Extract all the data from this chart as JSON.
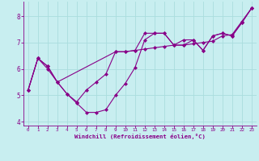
{
  "line1_x": [
    0,
    1,
    2,
    3,
    4,
    5,
    6,
    7,
    8,
    9,
    10,
    11,
    12,
    13,
    14,
    15,
    16,
    17,
    18,
    19,
    20,
    21,
    22,
    23
  ],
  "line1_y": [
    5.2,
    6.4,
    6.0,
    5.5,
    5.05,
    4.7,
    4.35,
    4.35,
    4.45,
    5.0,
    5.45,
    6.05,
    7.1,
    7.35,
    7.35,
    6.9,
    6.9,
    7.1,
    6.7,
    7.25,
    7.35,
    7.25,
    7.75,
    8.3
  ],
  "line2_x": [
    0,
    1,
    2,
    3,
    9,
    10,
    11,
    12,
    13,
    14,
    15,
    16,
    17,
    18,
    19,
    20,
    21,
    22,
    23
  ],
  "line2_y": [
    5.2,
    6.4,
    6.1,
    5.5,
    6.65,
    6.65,
    6.7,
    6.75,
    6.8,
    6.85,
    6.9,
    6.9,
    6.95,
    7.0,
    7.05,
    7.25,
    7.3,
    7.8,
    8.3
  ],
  "line3_x": [
    0,
    1,
    2,
    3,
    4,
    5,
    6,
    7,
    8,
    9,
    10,
    11,
    12,
    13,
    14,
    15,
    16,
    17,
    18,
    19,
    20,
    21,
    22,
    23
  ],
  "line3_y": [
    5.2,
    6.4,
    6.1,
    5.5,
    5.05,
    4.75,
    5.2,
    5.5,
    5.8,
    6.65,
    6.65,
    6.7,
    7.35,
    7.35,
    7.35,
    6.9,
    7.1,
    7.1,
    6.7,
    7.25,
    7.35,
    7.25,
    7.75,
    8.3
  ],
  "color": "#880088",
  "bg_color": "#c8eef0",
  "grid_color": "#aadddd",
  "xlabel": "Windchill (Refroidissement éolien,°C)",
  "xlim": [
    -0.5,
    23.5
  ],
  "ylim": [
    3.85,
    8.55
  ],
  "yticks": [
    4,
    5,
    6,
    7,
    8
  ],
  "xticks": [
    0,
    1,
    2,
    3,
    4,
    5,
    6,
    7,
    8,
    9,
    10,
    11,
    12,
    13,
    14,
    15,
    16,
    17,
    18,
    19,
    20,
    21,
    22,
    23
  ],
  "marker": "D",
  "markersize": 2.0,
  "linewidth": 0.8
}
